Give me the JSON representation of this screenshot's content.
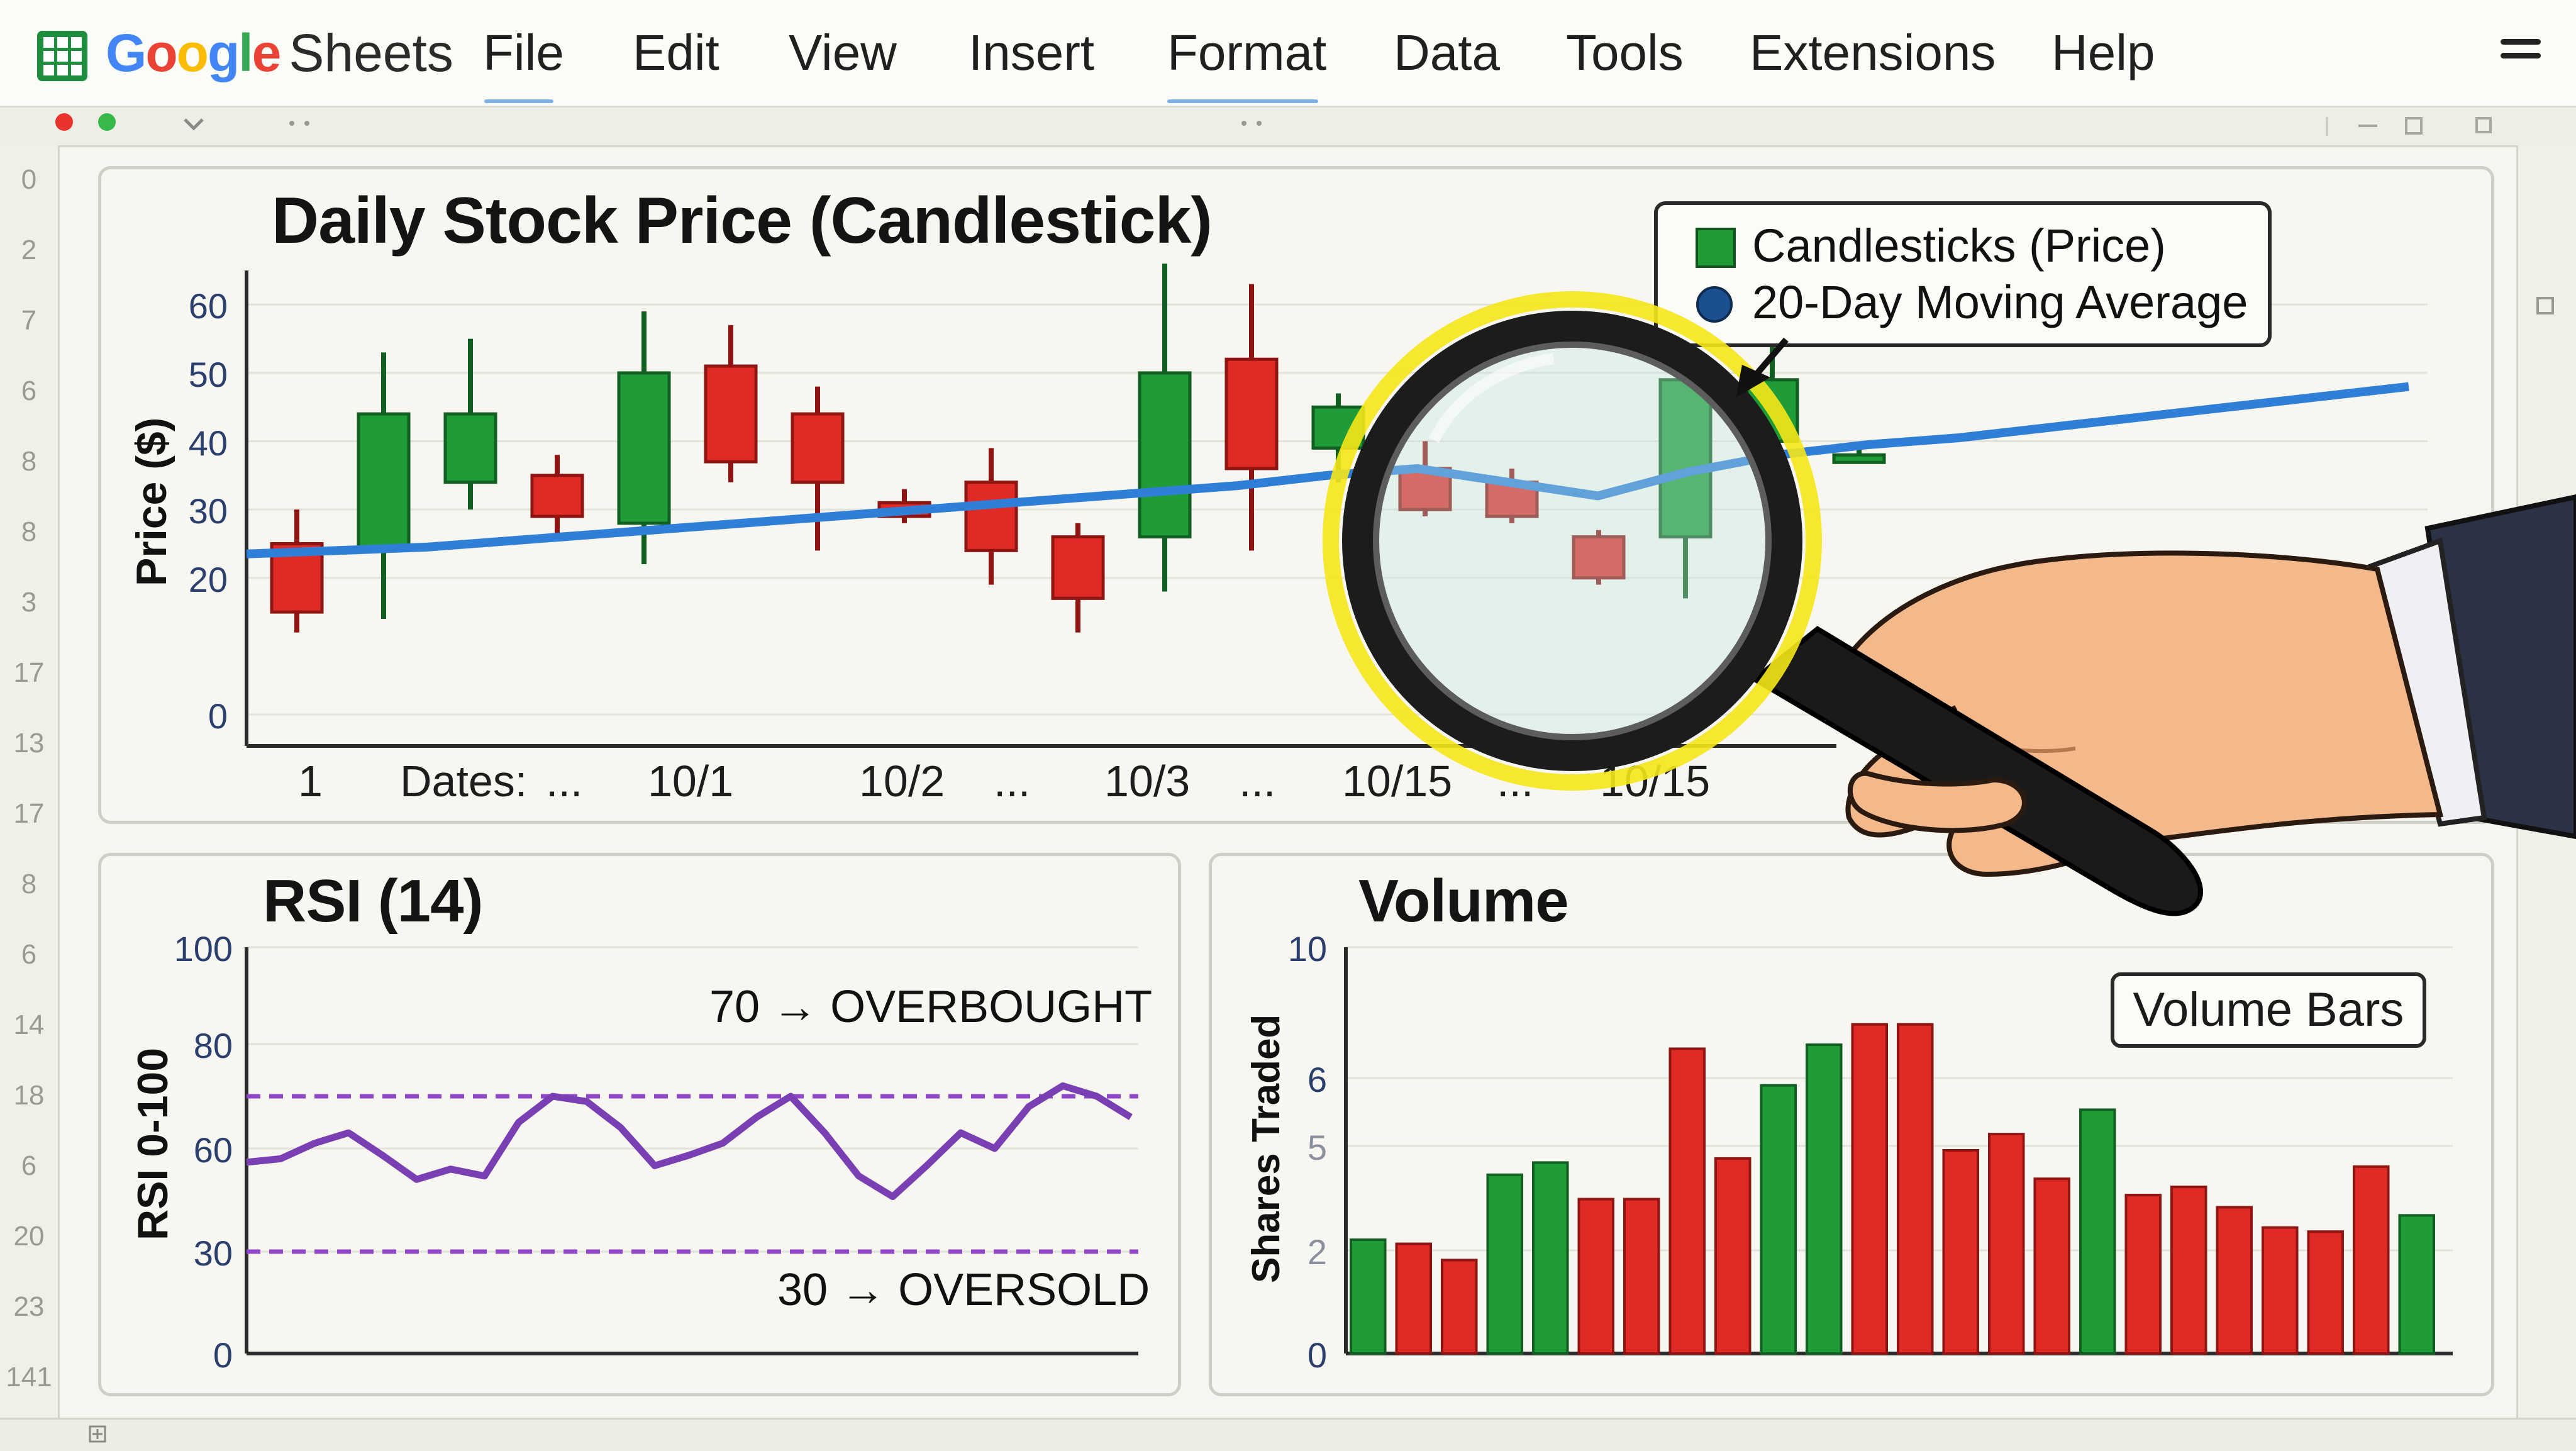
{
  "app": {
    "brand_google": "Google",
    "brand_sheets": "Sheets",
    "menu": [
      "File",
      "Edit",
      "View",
      "Insert",
      "Format",
      "Data",
      "Tools",
      "Extensions",
      "Help"
    ]
  },
  "row_numbers": [
    "0",
    "2",
    "7",
    "6",
    "8",
    "8",
    "3",
    "17",
    "13",
    "17",
    "8",
    "6",
    "14",
    "18",
    "6",
    "20",
    "23",
    "141"
  ],
  "colors": {
    "up": "#1f9b38",
    "down": "#e02a26",
    "ma_line": "#2f7fd8",
    "rsi_line": "#7a3fb3",
    "threshold": "#8f47c8",
    "magnifier_glow": "#f5e71a"
  },
  "price_chart": {
    "title": "Daily Stock Price (Candlestick)",
    "ylabel": "Price ($)",
    "ytick_labels": [
      "60",
      "50",
      "40",
      "30",
      "20",
      "0"
    ],
    "x_stub": "1",
    "x_prefix": "Dates:",
    "x_tick_labels": [
      "...",
      "10/1",
      "10/2",
      "...",
      "10/3",
      "...",
      "10/15",
      "...",
      "10/15"
    ],
    "legend": {
      "candles": "Candlesticks (Price)",
      "ma": "20-Day Moving Average"
    }
  },
  "rsi_chart": {
    "title": "RSI (14)",
    "ylabel": "RSI 0-100",
    "ytick_labels": [
      "100",
      "80",
      "60",
      "30",
      "0"
    ],
    "overbought_label": "70 → OVERBOUGHT",
    "oversold_label": "30 → OVERSOLD"
  },
  "volume_chart": {
    "title": "Volume",
    "ylabel": "Shares Traded",
    "ytick_labels": [
      "10",
      "6",
      "5",
      "2",
      "0"
    ],
    "callout": "Volume Bars"
  },
  "chart_data": [
    {
      "type": "candlestick",
      "title": "Daily Stock Price (Candlestick)",
      "ylabel": "Price ($)",
      "ylim": [
        0,
        65
      ],
      "candles": [
        {
          "open": 25,
          "close": 15,
          "high": 30,
          "low": 12,
          "dir": "down"
        },
        {
          "open": 24,
          "close": 44,
          "high": 53,
          "low": 14,
          "dir": "up"
        },
        {
          "open": 34,
          "close": 44,
          "high": 55,
          "low": 30,
          "dir": "up"
        },
        {
          "open": 35,
          "close": 29,
          "high": 38,
          "low": 26,
          "dir": "down"
        },
        {
          "open": 28,
          "close": 50,
          "high": 59,
          "low": 22,
          "dir": "up"
        },
        {
          "open": 51,
          "close": 37,
          "high": 57,
          "low": 34,
          "dir": "down"
        },
        {
          "open": 44,
          "close": 34,
          "high": 48,
          "low": 24,
          "dir": "down"
        },
        {
          "open": 31,
          "close": 29,
          "high": 33,
          "low": 28,
          "dir": "down"
        },
        {
          "open": 34,
          "close": 24,
          "high": 39,
          "low": 19,
          "dir": "down"
        },
        {
          "open": 26,
          "close": 17,
          "high": 28,
          "low": 12,
          "dir": "down"
        },
        {
          "open": 26,
          "close": 50,
          "high": 66,
          "low": 18,
          "dir": "up"
        },
        {
          "open": 52,
          "close": 36,
          "high": 63,
          "low": 24,
          "dir": "down"
        },
        {
          "open": 39,
          "close": 45,
          "high": 47,
          "low": 34,
          "dir": "up"
        },
        {
          "open": 36,
          "close": 30,
          "high": 40,
          "low": 29,
          "dir": "down"
        },
        {
          "open": 34,
          "close": 29,
          "high": 36,
          "low": 28,
          "dir": "down"
        },
        {
          "open": 26,
          "close": 20,
          "high": 27,
          "low": 19,
          "dir": "down"
        },
        {
          "open": 26,
          "close": 49,
          "high": 59,
          "low": 17,
          "dir": "up"
        },
        {
          "open": 40,
          "close": 49,
          "high": 56,
          "low": 29,
          "dir": "up"
        },
        {
          "open": 38,
          "close": 38,
          "high": 39,
          "low": 37,
          "dir": "up"
        }
      ],
      "moving_average": [
        23.5,
        24,
        24.5,
        25.5,
        26.5,
        27.5,
        28.5,
        29.5,
        30.5,
        31.5,
        32.5,
        33.5,
        35,
        36,
        34,
        32,
        35.5,
        38,
        39.5,
        40.5,
        42,
        43.5,
        45,
        46.5,
        48
      ]
    },
    {
      "type": "line",
      "title": "RSI (14)",
      "ylabel": "RSI 0-100",
      "ylim": [
        0,
        100
      ],
      "thresholds": [
        70,
        30
      ],
      "values": [
        56,
        57,
        61,
        63,
        58,
        51,
        54,
        52,
        65,
        70,
        69,
        64,
        55,
        58,
        61,
        66,
        70,
        63,
        52,
        46,
        55,
        63,
        60,
        68,
        72,
        70,
        66
      ]
    },
    {
      "type": "bar",
      "title": "Volume",
      "ylabel": "Shares Traded",
      "ylim": [
        0,
        10
      ],
      "bars": [
        {
          "value": 2.8,
          "dir": "up"
        },
        {
          "value": 2.7,
          "dir": "down"
        },
        {
          "value": 2.3,
          "dir": "down"
        },
        {
          "value": 4.4,
          "dir": "up"
        },
        {
          "value": 4.7,
          "dir": "up"
        },
        {
          "value": 3.8,
          "dir": "down"
        },
        {
          "value": 3.8,
          "dir": "down"
        },
        {
          "value": 7.5,
          "dir": "down"
        },
        {
          "value": 4.8,
          "dir": "down"
        },
        {
          "value": 6.6,
          "dir": "up"
        },
        {
          "value": 7.6,
          "dir": "up"
        },
        {
          "value": 8.1,
          "dir": "down"
        },
        {
          "value": 8.1,
          "dir": "down"
        },
        {
          "value": 5.0,
          "dir": "down"
        },
        {
          "value": 5.4,
          "dir": "down"
        },
        {
          "value": 4.3,
          "dir": "down"
        },
        {
          "value": 6.0,
          "dir": "up"
        },
        {
          "value": 3.9,
          "dir": "down"
        },
        {
          "value": 4.1,
          "dir": "down"
        },
        {
          "value": 3.6,
          "dir": "down"
        },
        {
          "value": 3.1,
          "dir": "down"
        },
        {
          "value": 3.0,
          "dir": "down"
        },
        {
          "value": 4.6,
          "dir": "down"
        },
        {
          "value": 3.4,
          "dir": "up"
        }
      ]
    }
  ]
}
